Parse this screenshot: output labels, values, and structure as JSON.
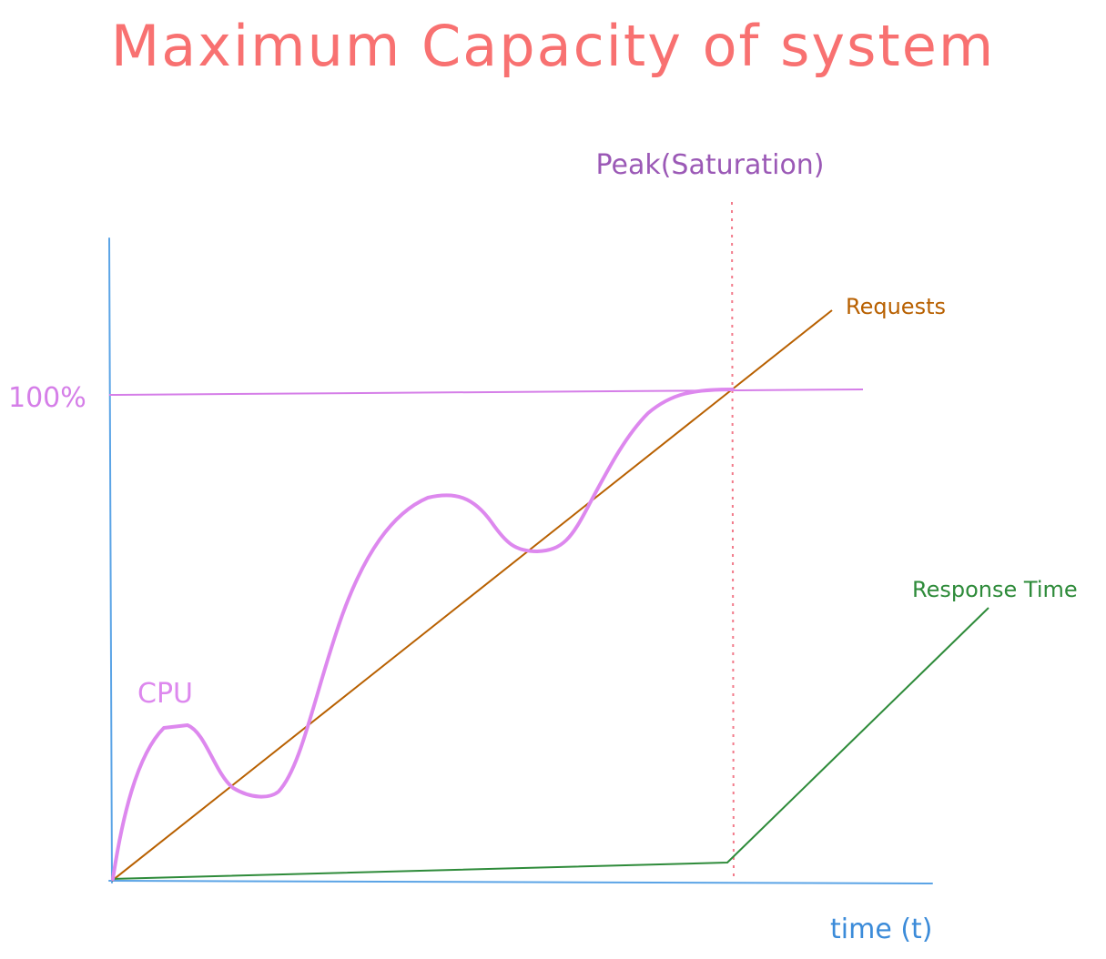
{
  "title": "Maximum Capacity of system",
  "labels": {
    "peak": "Peak(Saturation)",
    "hundred_percent": "100%",
    "requests": "Requests",
    "response_time": "Response Time",
    "cpu": "CPU",
    "x_axis": "time (t)"
  },
  "colors": {
    "title": "#f87171",
    "axis": "#5ba4e6",
    "peak": "#9b59b6",
    "hundred_line": "#d57ee8",
    "cpu": "#dd88ee",
    "requests": "#b86000",
    "response_time": "#2e8b3a",
    "saturation_marker": "#f27a8a",
    "x_label": "#3b8bd9"
  }
}
